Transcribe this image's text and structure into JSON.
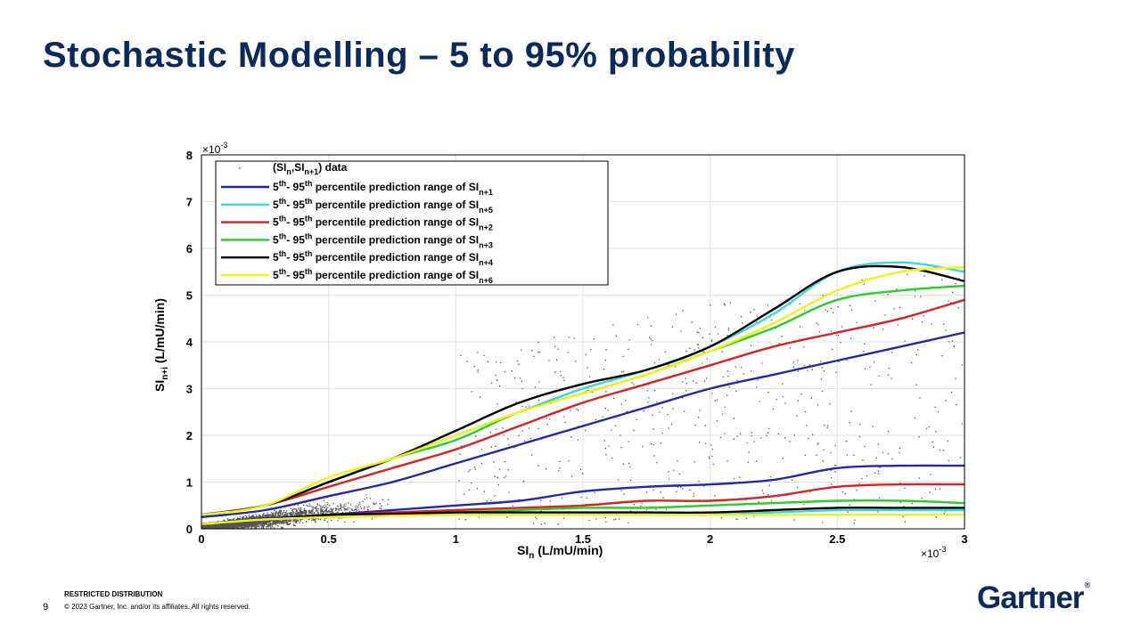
{
  "slide": {
    "title": "Stochastic Modelling – 5 to 95% probability",
    "page_number": "9",
    "restricted": "RESTRICTED DISTRIBUTION",
    "copyright": "© 2023 Gartner, Inc. and/or its affiliates. All rights reserved.",
    "logo": "Gartner",
    "logo_mark": "®"
  },
  "chart_data": {
    "type": "line",
    "xlabel": {
      "main": "SI",
      "sub": "n",
      "rest": " (L/mU/min)"
    },
    "ylabel": {
      "main": "SI",
      "sub": "n+i",
      "rest": " (L/mU/min)"
    },
    "x_multiplier": "×10",
    "x_exponent": "-3",
    "y_multiplier": "×10",
    "y_exponent": "-3",
    "xlim": [
      0,
      0.003
    ],
    "ylim": [
      0,
      0.008
    ],
    "xticks": [
      0,
      0.0005,
      0.001,
      0.0015,
      0.002,
      0.0025,
      0.003
    ],
    "xtick_labels": [
      "0",
      "0.5",
      "1",
      "1.5",
      "2",
      "2.5",
      "3"
    ],
    "yticks": [
      0,
      0.001,
      0.002,
      0.003,
      0.004,
      0.005,
      0.006,
      0.007,
      0.008
    ],
    "ytick_labels": [
      "0",
      "1",
      "2",
      "3",
      "4",
      "5",
      "6",
      "7",
      "8"
    ],
    "grid": true,
    "legend_position": "top-left",
    "scatter_series": {
      "legend": {
        "a": "(SI",
        "s1": "n",
        "b": ",SI",
        "s2": "n+1",
        "c": ") data"
      },
      "color": "#555555"
    },
    "legend_text": {
      "p1": "5",
      "sup1": "th",
      "p2": "- 95",
      "sup2": "th",
      "p3": " percentile prediction range of SI"
    },
    "series": [
      {
        "sub": "n+1",
        "color": "#1f2aa8",
        "x": [
          0,
          0.00025,
          0.0005,
          0.00075,
          0.001,
          0.00125,
          0.0015,
          0.00175,
          0.002,
          0.00225,
          0.0025,
          0.00275,
          0.003
        ],
        "upper": [
          0.00025,
          0.0004,
          0.0007,
          0.001,
          0.0014,
          0.0018,
          0.0022,
          0.0026,
          0.003,
          0.0033,
          0.0036,
          0.0039,
          0.0042
        ],
        "lower": [
          0.0001,
          0.00022,
          0.0003,
          0.0004,
          0.0005,
          0.0006,
          0.0008,
          0.0009,
          0.00095,
          0.00105,
          0.0013,
          0.00135,
          0.00135
        ]
      },
      {
        "sub": "n+5",
        "color": "#3ad8d8",
        "x": [
          0,
          0.00025,
          0.0005,
          0.00075,
          0.001,
          0.00125,
          0.0015,
          0.00175,
          0.002,
          0.00225,
          0.0025,
          0.00275,
          0.003
        ],
        "upper": [
          0.0003,
          0.0005,
          0.001,
          0.0015,
          0.002,
          0.0025,
          0.003,
          0.0034,
          0.0039,
          0.0046,
          0.0055,
          0.0057,
          0.0055
        ],
        "lower": [
          0.0001,
          0.0002,
          0.00025,
          0.00028,
          0.0003,
          0.0003,
          0.0003,
          0.0003,
          0.0003,
          0.00035,
          0.0004,
          0.0004,
          0.0004
        ]
      },
      {
        "sub": "n+2",
        "color": "#d42424",
        "x": [
          0,
          0.00025,
          0.0005,
          0.00075,
          0.001,
          0.00125,
          0.0015,
          0.00175,
          0.002,
          0.00225,
          0.0025,
          0.00275,
          0.003
        ],
        "upper": [
          0.0003,
          0.0005,
          0.0009,
          0.0013,
          0.0017,
          0.0022,
          0.0027,
          0.0031,
          0.0035,
          0.0039,
          0.0042,
          0.0045,
          0.0049
        ],
        "lower": [
          0.0001,
          0.0002,
          0.0003,
          0.00035,
          0.0004,
          0.00045,
          0.0005,
          0.0006,
          0.0006,
          0.0007,
          0.0009,
          0.00095,
          0.00095
        ]
      },
      {
        "sub": "n+3",
        "color": "#2ccc2c",
        "x": [
          0,
          0.00025,
          0.0005,
          0.00075,
          0.001,
          0.00125,
          0.0015,
          0.00175,
          0.002,
          0.00225,
          0.0025,
          0.00275,
          0.003
        ],
        "upper": [
          0.0003,
          0.0005,
          0.001,
          0.0015,
          0.0019,
          0.0025,
          0.0029,
          0.0033,
          0.0038,
          0.0043,
          0.0049,
          0.0051,
          0.0052
        ],
        "lower": [
          0.0001,
          0.0002,
          0.00028,
          0.0003,
          0.00035,
          0.0004,
          0.00045,
          0.00045,
          0.0005,
          0.00055,
          0.0006,
          0.0006,
          0.00055
        ]
      },
      {
        "sub": "n+4",
        "color": "#000000",
        "x": [
          0,
          0.00025,
          0.0005,
          0.00075,
          0.001,
          0.00125,
          0.0015,
          0.00175,
          0.002,
          0.00225,
          0.0025,
          0.00275,
          0.003
        ],
        "upper": [
          0.0003,
          0.0005,
          0.001,
          0.0015,
          0.0021,
          0.0027,
          0.0031,
          0.0034,
          0.0039,
          0.0047,
          0.0055,
          0.0056,
          0.0053
        ],
        "lower": [
          0.0001,
          0.0002,
          0.0003,
          0.00032,
          0.00035,
          0.00035,
          0.00035,
          0.00035,
          0.00035,
          0.0004,
          0.00045,
          0.00045,
          0.00045
        ]
      },
      {
        "sub": "n+6",
        "color": "#f2f21a",
        "x": [
          0,
          0.00025,
          0.0005,
          0.00075,
          0.001,
          0.00125,
          0.0015,
          0.00175,
          0.002,
          0.00225,
          0.0025,
          0.00275,
          0.003
        ],
        "upper": [
          0.0003,
          0.0005,
          0.0011,
          0.0015,
          0.002,
          0.0025,
          0.0029,
          0.0033,
          0.0038,
          0.0044,
          0.0051,
          0.0055,
          0.0056
        ],
        "lower": [
          0.0001,
          0.0002,
          0.00025,
          0.00028,
          0.0003,
          0.0003,
          0.0003,
          0.0003,
          0.0003,
          0.0003,
          0.0003,
          0.0003,
          0.0003
        ]
      }
    ]
  }
}
